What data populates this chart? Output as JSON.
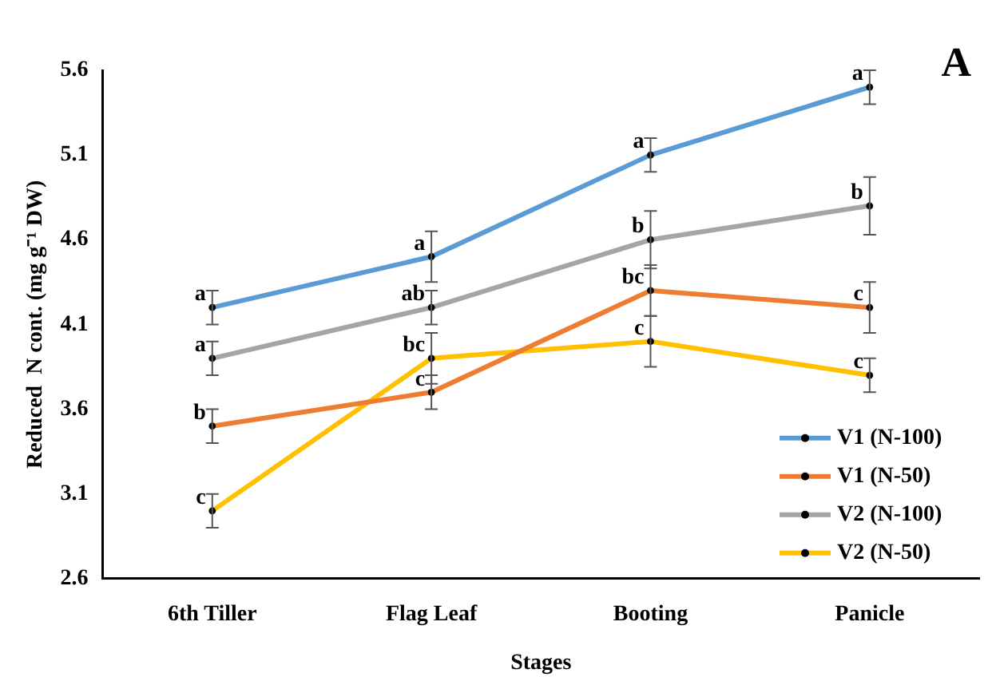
{
  "chart_data": {
    "type": "line",
    "xlabel": "Stages",
    "ylabel": "Reduced  N cont. (mg g⁻¹ DW)",
    "categories": [
      "6th Tiller",
      "Flag Leaf",
      "Booting",
      "Panicle"
    ],
    "series": [
      {
        "name": "V1 (N-100)",
        "color": "#5b9bd5",
        "values": [
          4.2,
          4.5,
          5.1,
          5.5
        ],
        "errors": [
          0.1,
          0.15,
          0.1,
          0.1
        ]
      },
      {
        "name": "V1 (N-50)",
        "color": "#ed7d31",
        "values": [
          3.5,
          3.7,
          4.3,
          4.2
        ],
        "errors": [
          0.1,
          0.1,
          0.15,
          0.15
        ]
      },
      {
        "name": "V2 (N-100)",
        "color": "#a5a5a5",
        "values": [
          3.9,
          4.2,
          4.6,
          4.8
        ],
        "errors": [
          0.1,
          0.1,
          0.17,
          0.17
        ]
      },
      {
        "name": "V2 (N-50)",
        "color": "#ffc000",
        "values": [
          3.0,
          3.9,
          4.0,
          3.8
        ],
        "errors": [
          0.1,
          0.15,
          0.15,
          0.1
        ]
      }
    ],
    "ylim": [
      2.6,
      5.6
    ],
    "yticks": [
      2.6,
      3.1,
      3.6,
      4.1,
      4.6,
      5.1,
      5.6
    ],
    "grid": false,
    "legend": "bottom right",
    "marker": "circle",
    "line_style": "solid",
    "annotations": [
      "A",
      {
        "text": "a",
        "x": "6th Tiller",
        "y": 4.2
      },
      {
        "text": "a",
        "x": "Flag Leaf",
        "y": 4.5
      },
      {
        "text": "a",
        "x": "Booting",
        "y": 5.1
      },
      {
        "text": "a",
        "x": "Panicle",
        "y": 5.5
      },
      {
        "text": "b",
        "x": "6th Tiller",
        "y": 3.5
      },
      {
        "text": "c",
        "x": "Flag Leaf",
        "y": 3.7
      },
      {
        "text": "bc",
        "x": "Booting",
        "y": 4.3
      },
      {
        "text": "c",
        "x": "Panicle",
        "y": 4.2
      },
      {
        "text": "a",
        "x": "6th Tiller",
        "y": 3.9
      },
      {
        "text": "ab",
        "x": "Flag Leaf",
        "y": 4.2
      },
      {
        "text": "b",
        "x": "Booting",
        "y": 4.6
      },
      {
        "text": "b",
        "x": "Panicle",
        "y": 4.8
      },
      {
        "text": "c",
        "x": "6th Tiller",
        "y": 3.0
      },
      {
        "text": "bc",
        "x": "Flag Leaf",
        "y": 3.9
      },
      {
        "text": "c",
        "x": "Booting",
        "y": 4.0
      },
      {
        "text": "c",
        "x": "Panicle",
        "y": 3.8
      }
    ]
  }
}
